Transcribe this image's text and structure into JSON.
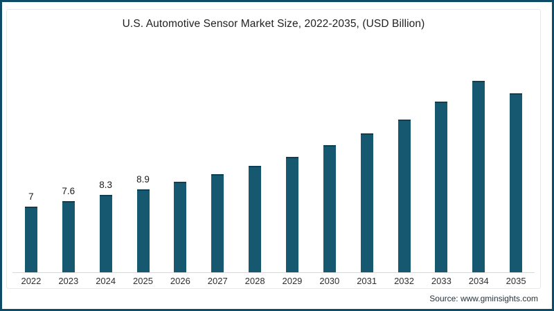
{
  "frame": {
    "border_color": "#0e4b66",
    "background": "#ffffff",
    "card_border_color": "#e8e8e6"
  },
  "chart_data": {
    "type": "bar",
    "title": "U.S. Automotive Sensor Market Size, 2022-2035, (USD Billion)",
    "xlabel": "",
    "ylabel": "",
    "categories": [
      "2022",
      "2023",
      "2024",
      "2025",
      "2026",
      "2027",
      "2028",
      "2029",
      "2030",
      "2031",
      "2032",
      "2033",
      "2034",
      "2035"
    ],
    "values": [
      7,
      7.6,
      8.3,
      8.9,
      9.7,
      10.5,
      11.4,
      12.4,
      13.6,
      14.9,
      16.4,
      18.3,
      20.5,
      19.2
    ],
    "data_labels": [
      "7",
      "7.6",
      "8.3",
      "8.9",
      "",
      "",
      "",
      "",
      "",
      "",
      "",
      "",
      "",
      ""
    ],
    "bar_color": "#15586f",
    "bar_top_edge_color": "#0e3e53",
    "axis_line_color": "#d8d8d8",
    "ylim": [
      0,
      22
    ],
    "grid": "off",
    "legend": "none"
  },
  "footer": {
    "source": "Source: www.gminsights.com"
  }
}
